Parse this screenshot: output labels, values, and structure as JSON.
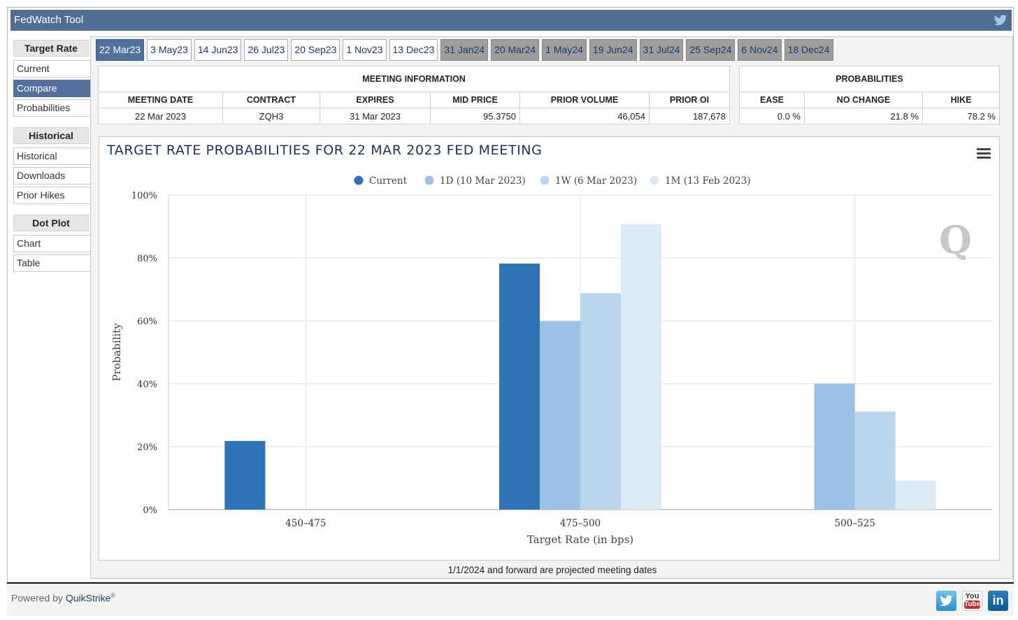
{
  "app": {
    "title": "FedWatch Tool"
  },
  "sidebar": {
    "groups": [
      {
        "header": "Target Rate",
        "items": [
          {
            "label": "Current"
          },
          {
            "label": "Compare"
          },
          {
            "label": "Probabilities"
          }
        ]
      },
      {
        "header": "Historical",
        "items": [
          {
            "label": "Historical"
          },
          {
            "label": "Downloads"
          },
          {
            "label": "Prior Hikes"
          }
        ]
      },
      {
        "header": "Dot Plot",
        "items": [
          {
            "label": "Chart"
          },
          {
            "label": "Table"
          }
        ]
      }
    ],
    "active_item": "Compare"
  },
  "tabs": [
    {
      "label": "22 Mar23",
      "state": "active"
    },
    {
      "label": "3 May23",
      "state": "normal"
    },
    {
      "label": "14 Jun23",
      "state": "normal"
    },
    {
      "label": "26 Jul23",
      "state": "normal"
    },
    {
      "label": "20 Sep23",
      "state": "normal"
    },
    {
      "label": "1 Nov23",
      "state": "normal"
    },
    {
      "label": "13 Dec23",
      "state": "normal"
    },
    {
      "label": "31 Jan24",
      "state": "future"
    },
    {
      "label": "20 Mar24",
      "state": "future"
    },
    {
      "label": "1 May24",
      "state": "future"
    },
    {
      "label": "19 Jun24",
      "state": "future"
    },
    {
      "label": "31 Jul24",
      "state": "future"
    },
    {
      "label": "25 Sep24",
      "state": "future"
    },
    {
      "label": "6 Nov24",
      "state": "future"
    },
    {
      "label": "18 Dec24",
      "state": "future"
    }
  ],
  "meeting_info": {
    "caption": "MEETING INFORMATION",
    "headers": [
      "MEETING DATE",
      "CONTRACT",
      "EXPIRES",
      "MID PRICE",
      "PRIOR VOLUME",
      "PRIOR OI"
    ],
    "values": [
      "22 Mar 2023",
      "ZQH3",
      "31 Mar 2023",
      "95.3750",
      "46,054",
      "187,678"
    ]
  },
  "probabilities": {
    "caption": "PROBABILITIES",
    "headers": [
      "EASE",
      "NO CHANGE",
      "HIKE"
    ],
    "values": [
      "0.0 %",
      "21.8 %",
      "78.2 %"
    ]
  },
  "chart_data": {
    "type": "bar",
    "title": "TARGET RATE PROBABILITIES FOR 22 MAR 2023 FED MEETING",
    "xlabel": "Target Rate (in bps)",
    "ylabel": "Probability",
    "ylim": [
      0,
      100
    ],
    "yticks": [
      "0%",
      "20%",
      "40%",
      "60%",
      "80%",
      "100%"
    ],
    "categories": [
      "450-475",
      "475-500",
      "500-525"
    ],
    "series": [
      {
        "name": "Current",
        "color": "#2e73b5",
        "values": [
          21.8,
          78.2,
          0
        ]
      },
      {
        "name": "1D (10 Mar 2023)",
        "color": "#9dc1e6",
        "values": [
          0,
          59.9,
          40.1
        ]
      },
      {
        "name": "1W (6 Mar 2023)",
        "color": "#bcd6ee",
        "values": [
          0,
          68.8,
          31.2
        ]
      },
      {
        "name": "1M (13 Feb 2023)",
        "color": "#dce9f6",
        "values": [
          0,
          90.8,
          9.2
        ]
      }
    ],
    "legend": "top-center",
    "grid": true
  },
  "footer_note": "1/1/2024 and forward are projected meeting dates",
  "bottom": {
    "powered_prefix": "Powered by",
    "brand": "QuikStrike",
    "registered": "®",
    "social": [
      "twitter-icon",
      "youtube-icon",
      "linkedin-icon"
    ]
  }
}
